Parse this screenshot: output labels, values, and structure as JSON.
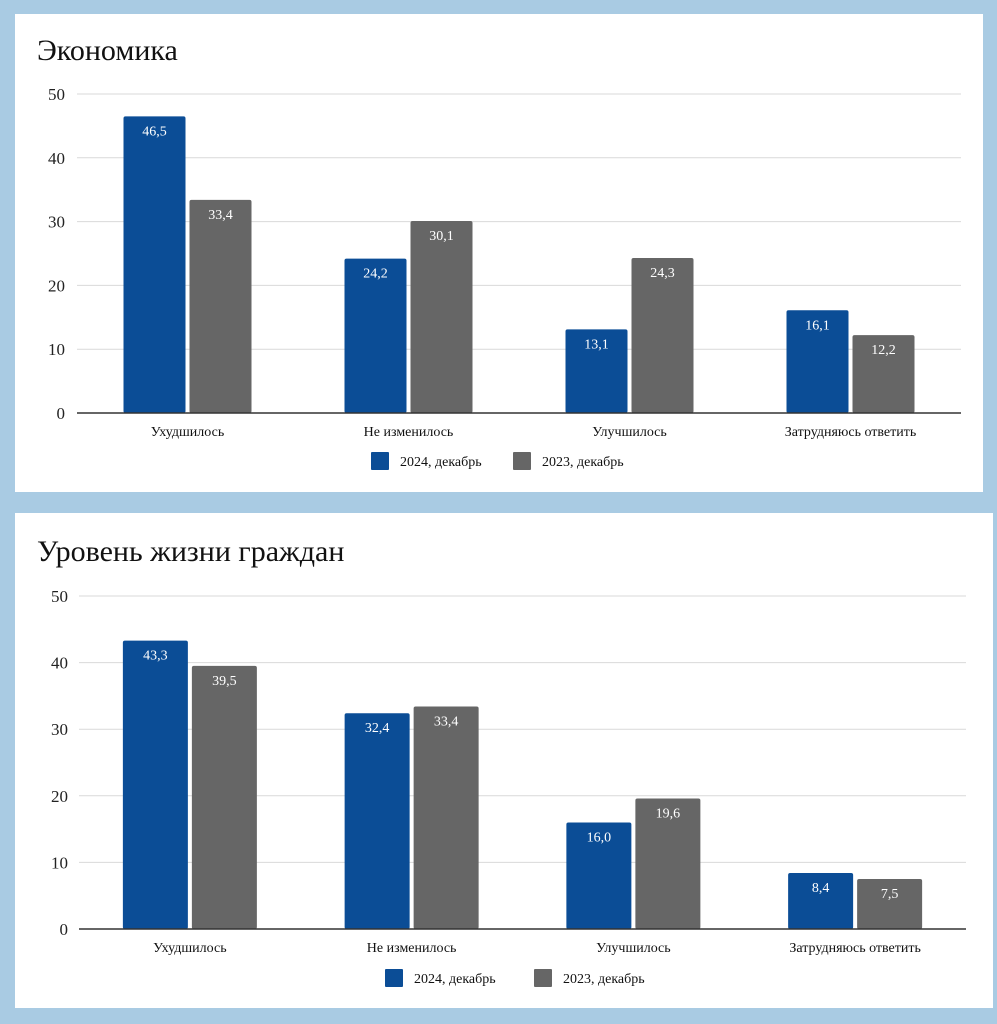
{
  "colors": {
    "background": "#a9cbe3",
    "panel": "#ffffff",
    "series_2024": "#0b4d96",
    "series_2023": "#666666",
    "grid": "#d9d9d9",
    "axis": "#333333"
  },
  "chart_data": [
    {
      "type": "bar",
      "title": "Экономика",
      "categories": [
        "Ухудшилось",
        "Не изменилось",
        "Улучшилось",
        "Затрудняюсь ответить"
      ],
      "series": [
        {
          "name": "2024, декабрь",
          "values": [
            46.5,
            24.2,
            13.1,
            16.1
          ],
          "labels": [
            "46,5",
            "24,2",
            "13,1",
            "16,1"
          ],
          "color": "#0b4d96"
        },
        {
          "name": "2023, декабрь",
          "values": [
            33.4,
            30.1,
            24.3,
            12.2
          ],
          "labels": [
            "33,4",
            "30,1",
            "24,3",
            "12,2"
          ],
          "color": "#666666"
        }
      ],
      "yticks": [
        "0",
        "10",
        "20",
        "30",
        "40",
        "50"
      ],
      "ylim": [
        0,
        50
      ],
      "grid": true,
      "legend": "bottom-center"
    },
    {
      "type": "bar",
      "title": "Уровень жизни граждан",
      "categories": [
        "Ухудшилось",
        "Не изменилось",
        "Улучшилось",
        "Затрудняюсь ответить"
      ],
      "series": [
        {
          "name": "2024, декабрь",
          "values": [
            43.3,
            32.4,
            16.0,
            8.4
          ],
          "labels": [
            "43,3",
            "32,4",
            "16,0",
            "8,4"
          ],
          "color": "#0b4d96"
        },
        {
          "name": "2023, декабрь",
          "values": [
            39.5,
            33.4,
            19.6,
            7.5
          ],
          "labels": [
            "39,5",
            "33,4",
            "19,6",
            "7,5"
          ],
          "color": "#666666"
        }
      ],
      "yticks": [
        "0",
        "10",
        "20",
        "30",
        "40",
        "50"
      ],
      "ylim": [
        0,
        50
      ],
      "grid": true,
      "legend": "bottom-center"
    }
  ]
}
